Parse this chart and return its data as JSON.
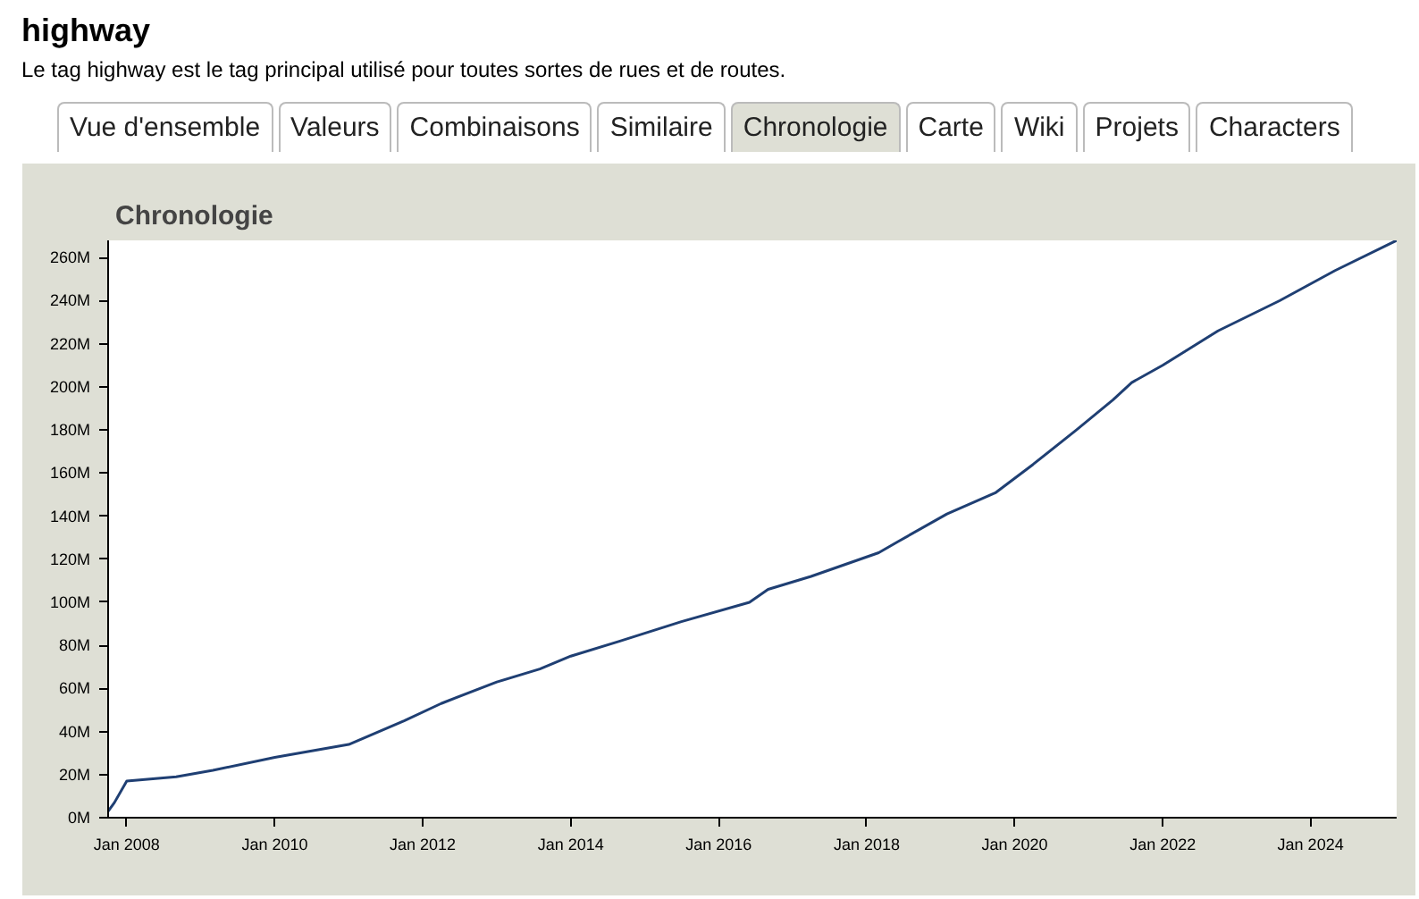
{
  "chart_data": {
    "type": "line",
    "title": "Chronologie",
    "subtitle": "Le tag highway est le tag principal utilisé pour toutes sortes de rues et de routes.",
    "annotations": [
      "highway",
      "Vue d'ensemble",
      "Valeurs",
      "Combinaisons",
      "Similaire",
      "Chronologie",
      "Carte",
      "Wiki",
      "Projets",
      "Characters"
    ],
    "x": [
      "2007-10",
      "2007-11",
      "2008-01",
      "2008-09",
      "2009-03",
      "2010-01",
      "2011-01",
      "2011-10",
      "2012-04",
      "2013-01",
      "2013-08",
      "2014-01",
      "2014-09",
      "2015-07",
      "2016-06",
      "2016-09",
      "2017-04",
      "2018-03",
      "2018-06",
      "2019-02",
      "2019-10",
      "2020-04",
      "2020-11",
      "2021-05",
      "2021-08",
      "2022-01",
      "2022-10",
      "2023-08",
      "2024-05",
      "2025-03"
    ],
    "series": [
      {
        "color": "#1f3f73",
        "values": [
          3,
          7,
          17,
          19,
          22,
          28,
          34,
          45,
          53,
          63,
          69,
          75,
          82,
          91,
          100,
          106,
          112,
          123,
          128,
          141,
          151,
          164,
          180,
          194,
          202,
          210,
          226,
          240,
          254,
          268
        ]
      }
    ],
    "xlim": [
      "2007-10",
      "2025-03"
    ],
    "ylim": [
      0,
      268
    ],
    "xticks": [
      {
        "value": "2008-01",
        "label": "Jan 2008"
      },
      {
        "value": "2010-01",
        "label": "Jan 2010"
      },
      {
        "value": "2012-01",
        "label": "Jan 2012"
      },
      {
        "value": "2014-01",
        "label": "Jan 2014"
      },
      {
        "value": "2016-01",
        "label": "Jan 2016"
      },
      {
        "value": "2018-01",
        "label": "Jan 2018"
      },
      {
        "value": "2020-01",
        "label": "Jan 2020"
      },
      {
        "value": "2022-01",
        "label": "Jan 2022"
      },
      {
        "value": "2024-01",
        "label": "Jan 2024"
      }
    ],
    "yticks": [
      {
        "value": 0,
        "label": "0M"
      },
      {
        "value": 20,
        "label": "20M"
      },
      {
        "value": 40,
        "label": "40M"
      },
      {
        "value": 60,
        "label": "60M"
      },
      {
        "value": 80,
        "label": "80M"
      },
      {
        "value": 100,
        "label": "100M"
      },
      {
        "value": 120,
        "label": "120M"
      },
      {
        "value": 140,
        "label": "140M"
      },
      {
        "value": 160,
        "label": "160M"
      },
      {
        "value": 180,
        "label": "180M"
      },
      {
        "value": 200,
        "label": "200M"
      },
      {
        "value": 220,
        "label": "220M"
      },
      {
        "value": 240,
        "label": "240M"
      },
      {
        "value": 260,
        "label": "260M"
      }
    ],
    "grid": false,
    "marker": "none",
    "line_style": "solid"
  }
}
